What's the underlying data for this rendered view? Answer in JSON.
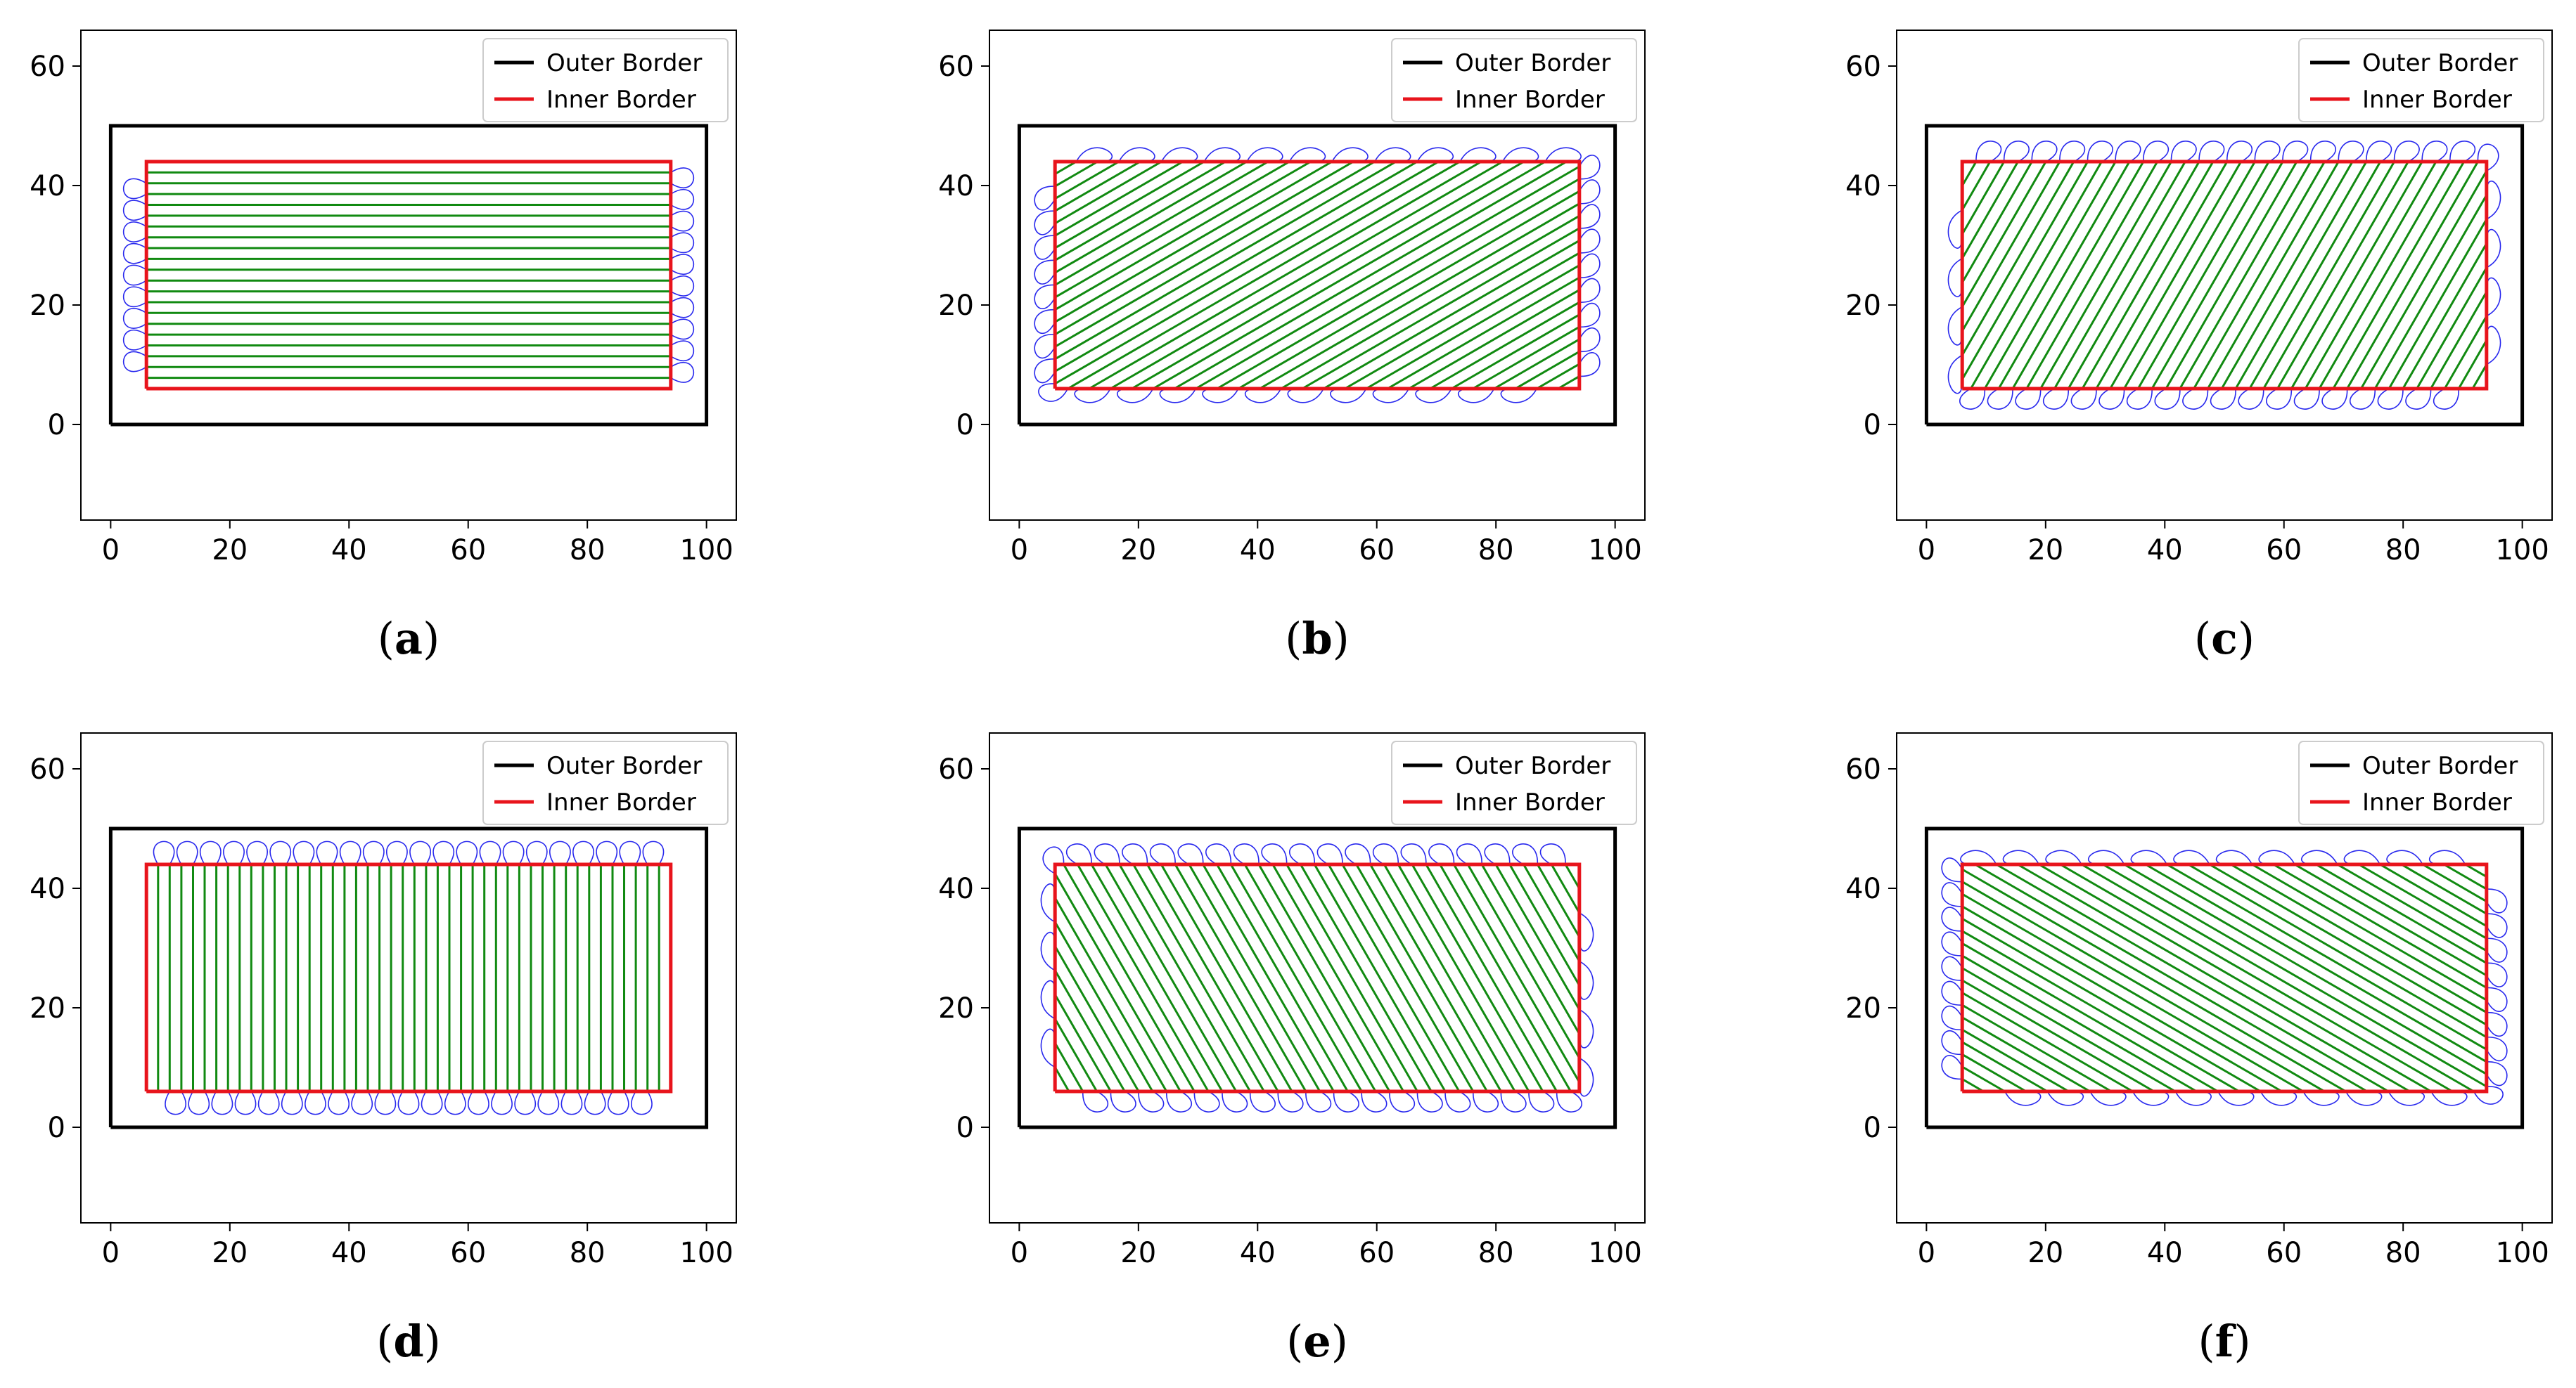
{
  "figure": {
    "colors": {
      "outer_border": "#000000",
      "inner_border": "#e8141c",
      "fill_lines": "#118a11",
      "turn_paths": "#2828ee",
      "axes_frame": "#000000"
    }
  },
  "chart_data": [
    {
      "type": "line",
      "panel": "a",
      "caption": "a",
      "title": "",
      "xlabel": "",
      "ylabel": "",
      "xlim": [
        -5,
        105
      ],
      "ylim": [
        -16,
        66
      ],
      "xticks": [
        0,
        20,
        40,
        60,
        80,
        100
      ],
      "yticks": [
        0,
        20,
        40,
        60
      ],
      "legend": {
        "location": "top-right",
        "entries": [
          "Outer Border",
          "Inner Border"
        ]
      },
      "series": [
        {
          "name": "Outer Border",
          "x": [
            0,
            100,
            100,
            0,
            0
          ],
          "y": [
            0,
            0,
            50,
            50,
            0
          ]
        },
        {
          "name": "Inner Border",
          "x": [
            6,
            94,
            94,
            6,
            6
          ],
          "y": [
            6,
            6,
            44,
            44,
            6
          ]
        }
      ],
      "coverage": {
        "angle_deg": 0,
        "line_count": 20,
        "turn_side": "left-right"
      }
    },
    {
      "type": "line",
      "panel": "b",
      "caption": "b",
      "title": "",
      "xlabel": "",
      "ylabel": "",
      "xlim": [
        -5,
        105
      ],
      "ylim": [
        -16,
        66
      ],
      "xticks": [
        0,
        20,
        40,
        60,
        80,
        100
      ],
      "yticks": [
        0,
        20,
        40,
        60
      ],
      "legend": {
        "location": "top-right",
        "entries": [
          "Outer Border",
          "Inner Border"
        ]
      },
      "series": [
        {
          "name": "Outer Border",
          "x": [
            0,
            100,
            100,
            0,
            0
          ],
          "y": [
            0,
            0,
            50,
            50,
            0
          ]
        },
        {
          "name": "Inner Border",
          "x": [
            6,
            94,
            94,
            6,
            6
          ],
          "y": [
            6,
            6,
            44,
            44,
            6
          ]
        }
      ],
      "coverage": {
        "angle_deg": 30,
        "line_count": 42,
        "turn_side": "all"
      }
    },
    {
      "type": "line",
      "panel": "c",
      "caption": "c",
      "title": "",
      "xlabel": "",
      "ylabel": "",
      "xlim": [
        -5,
        105
      ],
      "ylim": [
        -16,
        66
      ],
      "xticks": [
        0,
        20,
        40,
        60,
        80,
        100
      ],
      "yticks": [
        0,
        20,
        40,
        60
      ],
      "legend": {
        "location": "top-right",
        "entries": [
          "Outer Border",
          "Inner Border"
        ]
      },
      "series": [
        {
          "name": "Outer Border",
          "x": [
            0,
            100,
            100,
            0,
            0
          ],
          "y": [
            0,
            0,
            50,
            50,
            0
          ]
        },
        {
          "name": "Inner Border",
          "x": [
            6,
            94,
            94,
            6,
            6
          ],
          "y": [
            6,
            6,
            44,
            44,
            6
          ]
        }
      ],
      "coverage": {
        "angle_deg": 60,
        "line_count": 46,
        "turn_side": "all"
      }
    },
    {
      "type": "line",
      "panel": "d",
      "caption": "d",
      "title": "",
      "xlabel": "",
      "ylabel": "",
      "xlim": [
        -5,
        105
      ],
      "ylim": [
        -16,
        66
      ],
      "xticks": [
        0,
        20,
        40,
        60,
        80,
        100
      ],
      "yticks": [
        0,
        20,
        40,
        60
      ],
      "legend": {
        "location": "top-right",
        "entries": [
          "Outer Border",
          "Inner Border"
        ]
      },
      "series": [
        {
          "name": "Outer Border",
          "x": [
            0,
            100,
            100,
            0,
            0
          ],
          "y": [
            0,
            0,
            50,
            50,
            0
          ]
        },
        {
          "name": "Inner Border",
          "x": [
            6,
            94,
            94,
            6,
            6
          ],
          "y": [
            6,
            6,
            44,
            44,
            6
          ]
        }
      ],
      "coverage": {
        "angle_deg": 90,
        "line_count": 44,
        "turn_side": "top-bottom"
      }
    },
    {
      "type": "line",
      "panel": "e",
      "caption": "e",
      "title": "",
      "xlabel": "",
      "ylabel": "",
      "xlim": [
        -5,
        105
      ],
      "ylim": [
        -16,
        66
      ],
      "xticks": [
        0,
        20,
        40,
        60,
        80,
        100
      ],
      "yticks": [
        0,
        20,
        40,
        60
      ],
      "legend": {
        "location": "top-right",
        "entries": [
          "Outer Border",
          "Inner Border"
        ]
      },
      "series": [
        {
          "name": "Outer Border",
          "x": [
            0,
            100,
            100,
            0,
            0
          ],
          "y": [
            0,
            0,
            50,
            50,
            0
          ]
        },
        {
          "name": "Inner Border",
          "x": [
            6,
            94,
            94,
            6,
            6
          ],
          "y": [
            6,
            6,
            44,
            44,
            6
          ]
        }
      ],
      "coverage": {
        "angle_deg": 120,
        "line_count": 46,
        "turn_side": "all"
      }
    },
    {
      "type": "line",
      "panel": "f",
      "caption": "f",
      "title": "",
      "xlabel": "",
      "ylabel": "",
      "xlim": [
        -5,
        105
      ],
      "ylim": [
        -16,
        66
      ],
      "xticks": [
        0,
        20,
        40,
        60,
        80,
        100
      ],
      "yticks": [
        0,
        20,
        40,
        60
      ],
      "legend": {
        "location": "top-right",
        "entries": [
          "Outer Border",
          "Inner Border"
        ]
      },
      "series": [
        {
          "name": "Outer Border",
          "x": [
            0,
            100,
            100,
            0,
            0
          ],
          "y": [
            0,
            0,
            50,
            50,
            0
          ]
        },
        {
          "name": "Inner Border",
          "x": [
            6,
            94,
            94,
            6,
            6
          ],
          "y": [
            6,
            6,
            44,
            44,
            6
          ]
        }
      ],
      "coverage": {
        "angle_deg": 150,
        "line_count": 42,
        "turn_side": "all"
      }
    }
  ]
}
